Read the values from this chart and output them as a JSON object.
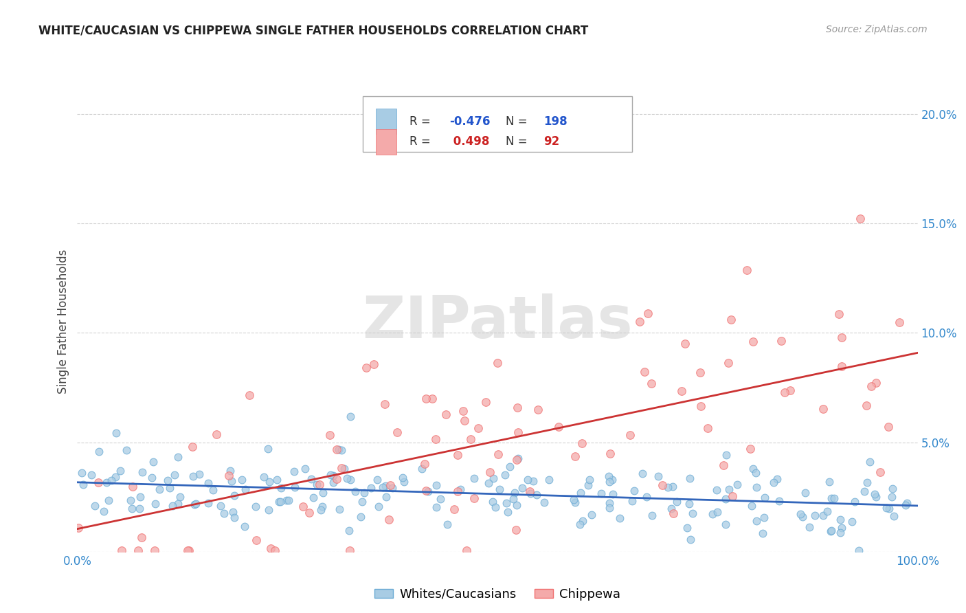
{
  "title": "WHITE/CAUCASIAN VS CHIPPEWA SINGLE FATHER HOUSEHOLDS CORRELATION CHART",
  "source": "Source: ZipAtlas.com",
  "ylabel": "Single Father Households",
  "watermark": "ZIPatlas",
  "legend": {
    "blue_label": "Whites/Caucasians",
    "pink_label": "Chippewa",
    "blue_R": -0.476,
    "blue_N": 198,
    "pink_R": 0.498,
    "pink_N": 92
  },
  "blue_color": "#a8cce4",
  "pink_color": "#f4aaaa",
  "blue_edge_color": "#6aaad4",
  "pink_edge_color": "#f07070",
  "blue_line_color": "#3366bb",
  "pink_line_color": "#cc3333",
  "background_color": "#ffffff",
  "grid_color": "#cccccc",
  "xlim": [
    0,
    100
  ],
  "ylim": [
    0,
    0.21
  ],
  "yticks": [
    0.0,
    0.05,
    0.1,
    0.15,
    0.2
  ],
  "ytick_labels": [
    "",
    "5.0%",
    "10.0%",
    "15.0%",
    "20.0%"
  ],
  "xticks": [
    0,
    100
  ],
  "xtick_labels": [
    "0.0%",
    "100.0%"
  ],
  "blue_seed": 42,
  "pink_seed": 7
}
